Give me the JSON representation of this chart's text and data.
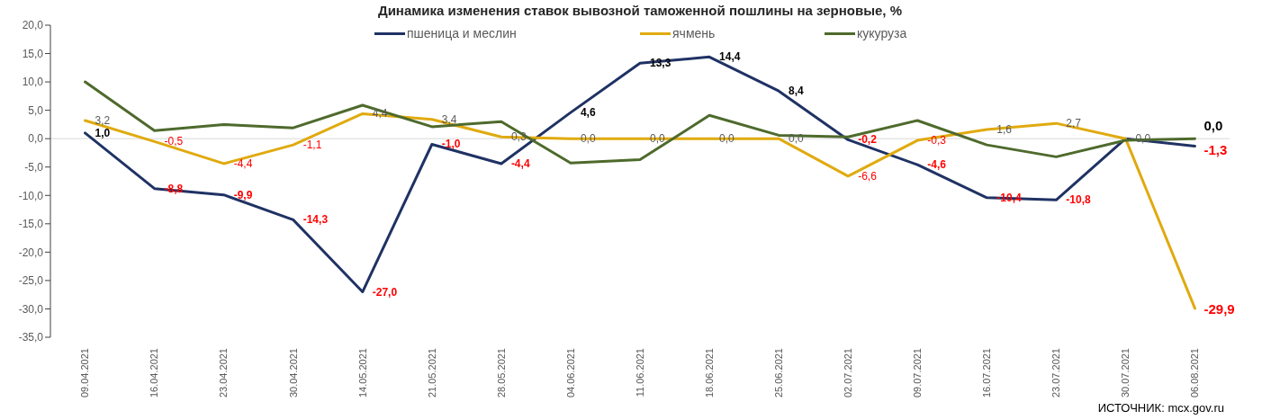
{
  "chart_data": {
    "type": "line",
    "title": "Динамика изменения ставок вывозной таможенной пошлины на зерновые, %",
    "categories": [
      "09.04.2021",
      "16.04.2021",
      "23.04.2021",
      "30.04.2021",
      "14.05.2021",
      "21.05.2021",
      "28.05.2021",
      "04.06.2021",
      "11.06.2021",
      "18.06.2021",
      "25.06.2021",
      "02.07.2021",
      "09.07.2021",
      "16.07.2021",
      "23.07.2021",
      "30.07.2021",
      "06.08.2021"
    ],
    "series": [
      {
        "name": "пшеница и меслин",
        "color": "#1f3264",
        "values": [
          1.0,
          -8.8,
          -9.9,
          -14.3,
          -27.0,
          -1.0,
          -4.4,
          4.6,
          13.3,
          14.4,
          8.4,
          -0.2,
          -4.6,
          -10.4,
          -10.8,
          0.0,
          -1.3
        ],
        "value_labels": [
          "1,0",
          "-8,8",
          "-9,9",
          "-14,3",
          "-27,0",
          "-1,0",
          "-4,4",
          "4,6",
          "13,3",
          "14,4",
          "8,4",
          "-0,2",
          "-4,6",
          "-10,4",
          "-10,8",
          null,
          "-1,3"
        ]
      },
      {
        "name": "ячмень",
        "color": "#e0aa0f",
        "values": [
          3.2,
          -0.5,
          -4.4,
          -1.1,
          4.4,
          3.4,
          0.3,
          0.0,
          0.0,
          0.0,
          0.0,
          -6.6,
          -0.3,
          1.6,
          2.7,
          0.0,
          -29.9
        ],
        "value_labels": [
          "3,2",
          "-0,5",
          "-4,4",
          "-1,1",
          "4,4",
          "3,4",
          "0,3",
          "0,0",
          "0,0",
          "0,0",
          "0,0",
          "-6,6",
          "-0,3",
          "1,6",
          "2,7",
          "0,0",
          "-29,9"
        ]
      },
      {
        "name": "кукуруза",
        "color": "#4e6a2c",
        "values": [
          10.0,
          1.4,
          2.5,
          1.9,
          5.9,
          2.1,
          3.0,
          -4.3,
          -3.7,
          4.1,
          0.6,
          0.3,
          3.2,
          -1.1,
          -3.2,
          -0.3,
          0.0
        ],
        "value_labels": [
          null,
          null,
          null,
          null,
          null,
          null,
          null,
          null,
          null,
          null,
          null,
          null,
          null,
          null,
          null,
          null,
          "0,0"
        ]
      }
    ],
    "ylim": [
      -35,
      20
    ],
    "yticks": [
      {
        "value": -35,
        "label": "-35,0"
      },
      {
        "value": -30,
        "label": "-30,0"
      },
      {
        "value": -25,
        "label": "-25,0"
      },
      {
        "value": -20,
        "label": "-20,0"
      },
      {
        "value": -15,
        "label": "-15,0"
      },
      {
        "value": -10,
        "label": "-10,0"
      },
      {
        "value": -5,
        "label": "-5,0"
      },
      {
        "value": 0,
        "label": "0,0"
      },
      {
        "value": 5,
        "label": "5,0"
      },
      {
        "value": 10,
        "label": "10,0"
      },
      {
        "value": 15,
        "label": "15,0"
      },
      {
        "value": 20,
        "label": "20,0"
      }
    ],
    "legend": "top",
    "marker": "none",
    "annotations": [
      "ИСТОЧНИК: mcx.gov.ru"
    ]
  }
}
